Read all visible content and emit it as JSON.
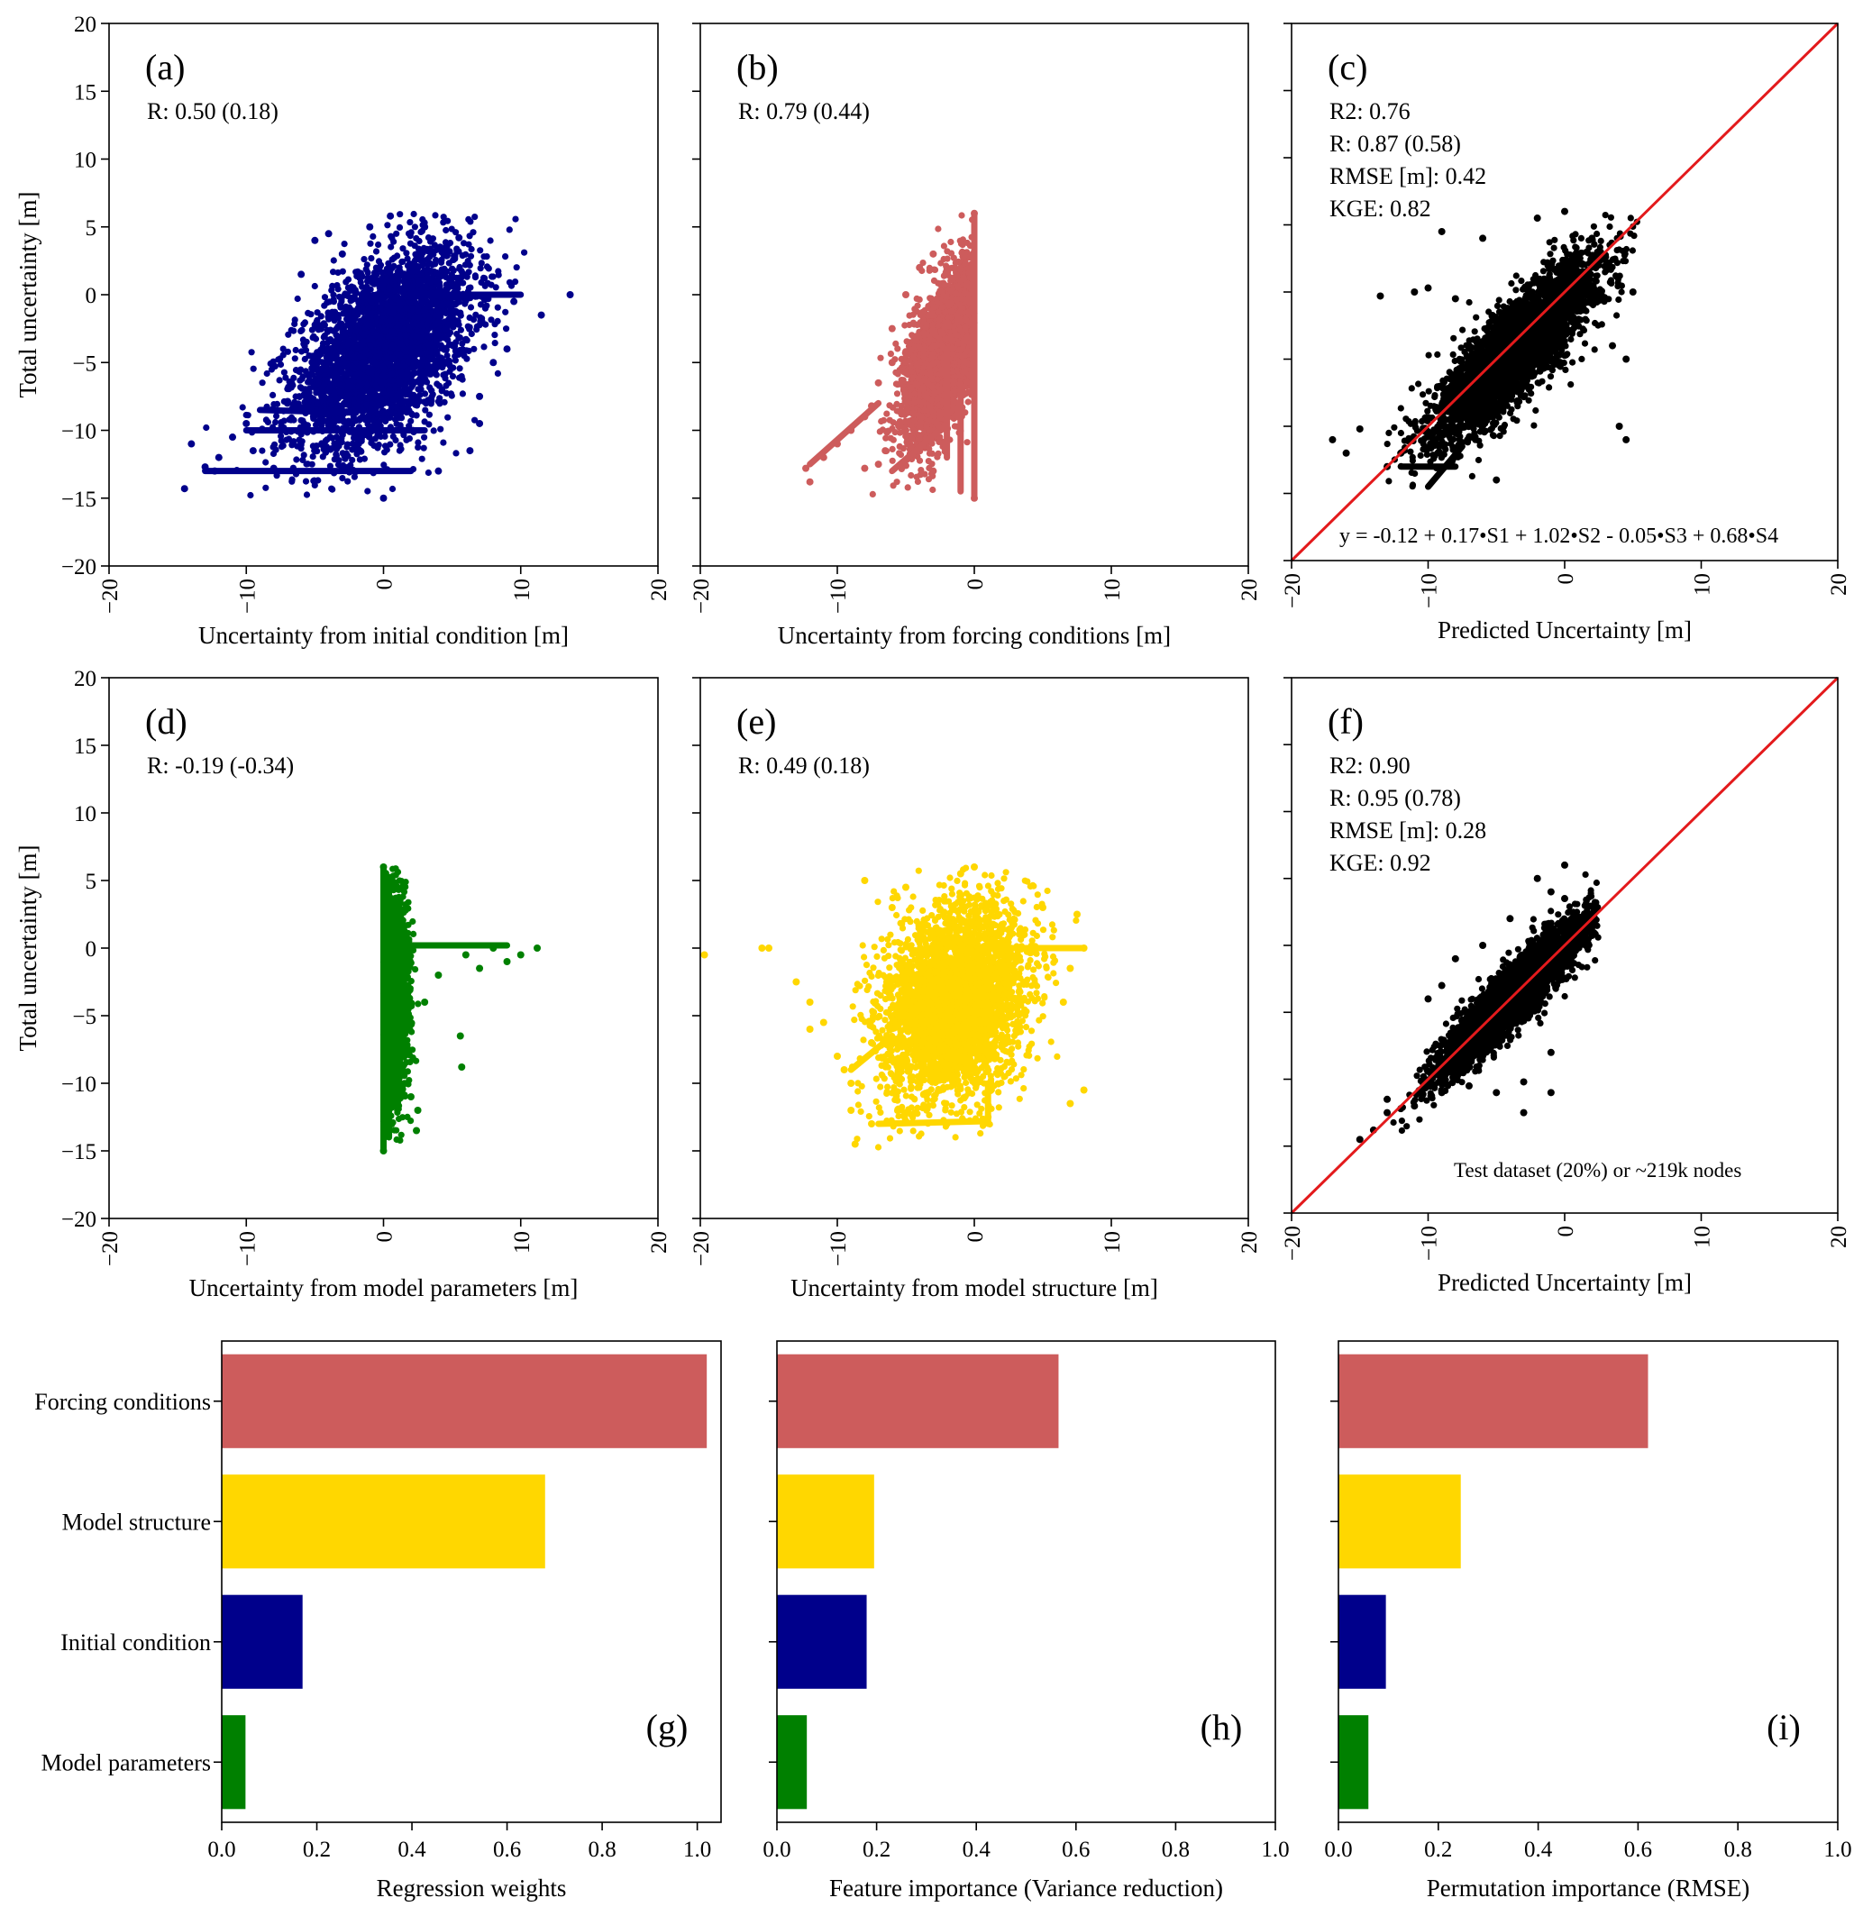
{
  "colors": {
    "initial": "#00008B",
    "forcing": "#CD5C5C",
    "parameters": "#008000",
    "structure": "#FFD700",
    "predicted": "#000000",
    "one_to_one_line": "#E31A1C"
  },
  "chart_data": [
    {
      "id": "a",
      "type": "scatter",
      "panel_label": "(a)",
      "stats": [
        "R: 0.50  (0.18)"
      ],
      "xlabel": "Uncertainty from initial condition [m]",
      "ylabel": "Total uncertainty [m]",
      "xlim": [
        -20,
        20
      ],
      "ylim": [
        -20,
        20
      ],
      "xticks": [
        "−20",
        "−10",
        "0",
        "10",
        "20"
      ],
      "yticks": [
        "−20",
        "−15",
        "−10",
        "−5",
        "0",
        "5",
        "10",
        "15",
        "20"
      ],
      "color_key": "initial",
      "cloud": {
        "cx": 0,
        "cy": -4,
        "sx": 3.2,
        "sy": 3.6,
        "r": 0.5,
        "xmin": -14.5,
        "xmax": 13.6,
        "ymin": -15,
        "ymax": 6
      },
      "points": [
        [
          -14.5,
          -14.3
        ],
        [
          -14,
          -11
        ],
        [
          -12.3,
          -13
        ],
        [
          -12,
          -12
        ],
        [
          -11,
          -10.5
        ],
        [
          -9.5,
          -11.5
        ],
        [
          -7,
          -8
        ],
        [
          -5,
          4
        ],
        [
          -4,
          4.5
        ],
        [
          11.5,
          -1.5
        ],
        [
          13.6,
          0
        ],
        [
          9.5,
          -0.5
        ],
        [
          9,
          -4
        ],
        [
          8,
          -5
        ],
        [
          7,
          -7.5
        ],
        [
          7,
          -9.5
        ],
        [
          5.5,
          4.2
        ],
        [
          3,
          5
        ],
        [
          0.5,
          5.8
        ],
        [
          -1,
          5
        ],
        [
          0,
          -15
        ],
        [
          -8,
          -12.8
        ],
        [
          -3,
          -12.8
        ],
        [
          4,
          -13
        ],
        [
          6.3,
          -11.5
        ],
        [
          -13,
          -12.7
        ],
        [
          -10,
          -9.5
        ],
        [
          -6,
          1.5
        ],
        [
          -3,
          3
        ]
      ],
      "lines": [
        [
          2,
          0,
          10,
          0
        ],
        [
          -10,
          -10,
          3,
          -10
        ],
        [
          -13,
          -13,
          2,
          -13
        ],
        [
          -9,
          -8.5,
          -2,
          -8.7
        ]
      ]
    },
    {
      "id": "b",
      "type": "scatter",
      "panel_label": "(b)",
      "stats": [
        "R: 0.79  (0.44)"
      ],
      "xlabel": "Uncertainty from forcing conditions [m]",
      "ylabel": "",
      "xlim": [
        -20,
        20
      ],
      "ylim": [
        -20,
        20
      ],
      "xticks": [
        "−20",
        "−10",
        "0",
        "10",
        "20"
      ],
      "yticks": [],
      "color_key": "forcing",
      "cloud": {
        "cx": -2,
        "cy": -4,
        "sx": 1.5,
        "sy": 3.2,
        "r": 0.6,
        "xmin": -12.5,
        "xmax": 0,
        "ymin": -15,
        "ymax": 6
      },
      "points": [
        [
          -12.3,
          -12.8
        ],
        [
          -12,
          -13.8
        ],
        [
          -11,
          -12
        ],
        [
          -10,
          -11
        ],
        [
          -9,
          -10
        ],
        [
          -8,
          -9
        ],
        [
          -7.5,
          -8.2
        ],
        [
          -7,
          -12.5
        ],
        [
          -8,
          -12.8
        ],
        [
          -6.5,
          -11.5
        ],
        [
          -5,
          -10
        ],
        [
          -3,
          -13
        ],
        [
          -6,
          -2.5
        ],
        [
          -5,
          0
        ],
        [
          -4,
          2
        ],
        [
          -3,
          3
        ],
        [
          -2,
          2
        ],
        [
          0,
          6
        ],
        [
          0,
          -15
        ],
        [
          -6,
          -5
        ],
        [
          -7,
          -6.5
        ]
      ],
      "lines": [
        [
          0,
          -15,
          0,
          6
        ],
        [
          -12,
          -12.5,
          -7,
          -8
        ],
        [
          -6,
          -13,
          -2,
          -9.5
        ],
        [
          -2,
          -12,
          -2,
          -4
        ],
        [
          -1,
          -14.5,
          -1,
          -7
        ]
      ]
    },
    {
      "id": "c",
      "type": "scatter",
      "panel_label": "(c)",
      "stats": [
        "R2: 0.76",
        "R: 0.87  (0.58)",
        "RMSE [m]: 0.42",
        "KGE: 0.82"
      ],
      "equation": "y = -0.12 + 0.17•S1 + 1.02•S2 - 0.05•S3 + 0.68•S4",
      "xlabel": "Predicted Uncertainty [m]",
      "ylabel": "",
      "xlim": [
        -20,
        20
      ],
      "ylim": [
        -20,
        20
      ],
      "xticks": [
        "−20",
        "−10",
        "0",
        "10",
        "20"
      ],
      "yticks": [],
      "color_key": "predicted",
      "one_to_one": true,
      "cloud": {
        "cx": -3.5,
        "cy": -4.2,
        "sx": 3,
        "sy": 3.3,
        "r": 0.85,
        "xmin": -17.5,
        "xmax": 5.5,
        "ymin": -15,
        "ymax": 6
      },
      "points": [
        [
          -17,
          -11
        ],
        [
          -16,
          -12
        ],
        [
          -15,
          -10.2
        ],
        [
          -13.5,
          -0.3
        ],
        [
          -11,
          0
        ],
        [
          -10,
          0.3
        ],
        [
          -8,
          -0.5
        ],
        [
          5,
          0
        ],
        [
          4.5,
          -5
        ],
        [
          4,
          -10
        ],
        [
          4.5,
          -11
        ],
        [
          -13,
          -13
        ],
        [
          -12,
          -12
        ],
        [
          -9,
          4.5
        ],
        [
          -6,
          4
        ],
        [
          -2,
          5.5
        ],
        [
          0,
          6
        ],
        [
          2,
          4
        ],
        [
          3.5,
          -4
        ],
        [
          -5,
          -14
        ]
      ],
      "lines": [
        [
          -10,
          -14.5,
          -7.5,
          -11.5
        ],
        [
          -12,
          -13,
          -8,
          -13
        ]
      ]
    },
    {
      "id": "d",
      "type": "scatter",
      "panel_label": "(d)",
      "stats": [
        "R: -0.19  (-0.34)"
      ],
      "xlabel": "Uncertainty from model parameters [m]",
      "ylabel": "Total uncertainty [m]",
      "xlim": [
        -20,
        20
      ],
      "ylim": [
        -20,
        20
      ],
      "xticks": [
        "−20",
        "−10",
        "0",
        "10",
        "20"
      ],
      "yticks": [
        "−20",
        "−15",
        "−10",
        "−5",
        "0",
        "5",
        "10",
        "15",
        "20"
      ],
      "color_key": "parameters",
      "cloud": {
        "cx": 0.5,
        "cy": -3,
        "sx": 0.6,
        "sy": 3.6,
        "r": 0,
        "xmin": 0,
        "xmax": 11.5,
        "ymin": -15,
        "ymax": 6
      },
      "points": [
        [
          11.2,
          0
        ],
        [
          10,
          -0.5
        ],
        [
          9,
          -1
        ],
        [
          8,
          0
        ],
        [
          7,
          -1.5
        ],
        [
          5.6,
          -6.5
        ],
        [
          5.7,
          -8.8
        ],
        [
          2.4,
          -13.5
        ],
        [
          2,
          -11
        ],
        [
          2.5,
          -12
        ],
        [
          0,
          6
        ],
        [
          0,
          -15
        ],
        [
          3,
          -4
        ],
        [
          4,
          -2
        ],
        [
          6,
          -0.5
        ]
      ],
      "lines": [
        [
          0,
          0.2,
          9,
          0.2
        ],
        [
          0,
          -15,
          0,
          6
        ],
        [
          0.4,
          -14,
          0.4,
          5
        ],
        [
          1,
          -12,
          1,
          2
        ]
      ]
    },
    {
      "id": "e",
      "type": "scatter",
      "panel_label": "(e)",
      "stats": [
        "R: 0.49  (0.18)"
      ],
      "xlabel": "Uncertainty from model structure [m]",
      "ylabel": "",
      "xlim": [
        -20,
        20
      ],
      "ylim": [
        -20,
        20
      ],
      "xticks": [
        "−20",
        "−10",
        "0",
        "10",
        "20"
      ],
      "yticks": [],
      "color_key": "structure",
      "cloud": {
        "cx": -1.5,
        "cy": -4,
        "sx": 2.6,
        "sy": 3.6,
        "r": 0.25,
        "xmin": -9,
        "xmax": 8,
        "ymin": -15,
        "ymax": 6
      },
      "points": [
        [
          -19.7,
          -0.5
        ],
        [
          -15.5,
          0
        ],
        [
          -15,
          0
        ],
        [
          -13,
          -2.5
        ],
        [
          -12,
          -4
        ],
        [
          -12,
          -6
        ],
        [
          -11,
          -5.5
        ],
        [
          -9,
          -10
        ],
        [
          -9,
          -12
        ],
        [
          -8.7,
          -14.5
        ],
        [
          -8,
          5
        ],
        [
          -6,
          3
        ],
        [
          -5,
          4.5
        ],
        [
          -1,
          5.5
        ],
        [
          0,
          6
        ],
        [
          5,
          3
        ],
        [
          7.5,
          2.5
        ],
        [
          7,
          -11.5
        ],
        [
          8,
          -10.5
        ],
        [
          6.5,
          -4
        ],
        [
          7,
          -1.5
        ],
        [
          8,
          0
        ],
        [
          -10,
          -8
        ],
        [
          -9.5,
          -9
        ],
        [
          -2,
          -13
        ],
        [
          -7.5,
          -13
        ],
        [
          -5,
          -12.8
        ],
        [
          1,
          -12.5
        ],
        [
          -7.5,
          -7
        ]
      ],
      "lines": [
        [
          -9,
          -9,
          -6,
          -6.5
        ],
        [
          -7,
          -13,
          1,
          -12.8
        ],
        [
          1,
          -13,
          1,
          -10
        ],
        [
          1,
          0,
          8,
          0
        ]
      ]
    },
    {
      "id": "f",
      "type": "scatter",
      "panel_label": "(f)",
      "stats": [
        "R2: 0.90",
        "R: 0.95  (0.78)",
        "RMSE [m]: 0.28",
        "KGE: 0.92"
      ],
      "note": "Test dataset (20%) or ~219k nodes",
      "xlabel": "Predicted Uncertainty [m]",
      "ylabel": "",
      "xlim": [
        -20,
        20
      ],
      "ylim": [
        -20,
        20
      ],
      "xticks": [
        "−20",
        "−10",
        "0",
        "10",
        "20"
      ],
      "yticks": [],
      "color_key": "predicted",
      "one_to_one": true,
      "cloud": {
        "cx": -3.8,
        "cy": -3.8,
        "sx": 2.7,
        "sy": 2.9,
        "r": 0.92,
        "xmin": -15,
        "xmax": 2.5,
        "ymin": -15,
        "ymax": 6
      },
      "points": [
        [
          -15,
          -14.5
        ],
        [
          -14,
          -13.8
        ],
        [
          -13,
          -12.5
        ],
        [
          -12,
          -12.2
        ],
        [
          -11,
          -12
        ],
        [
          -9,
          -11
        ],
        [
          -7,
          -10.5
        ],
        [
          -5,
          -11
        ],
        [
          -3,
          -12.5
        ],
        [
          -1,
          -11
        ],
        [
          -1,
          -8
        ],
        [
          -10,
          -4
        ],
        [
          -9,
          -3
        ],
        [
          -8,
          -1
        ],
        [
          -6,
          0
        ],
        [
          -4,
          2
        ],
        [
          -2,
          5
        ],
        [
          -1,
          4
        ],
        [
          0,
          3.5
        ],
        [
          0,
          6
        ],
        [
          -3,
          -10.2
        ],
        [
          -13,
          -11.5
        ]
      ],
      "lines": []
    },
    {
      "id": "g",
      "type": "bar",
      "orientation": "horizontal",
      "panel_label": "(g)",
      "xlabel": "Regression weights",
      "xlim": [
        0,
        1.05
      ],
      "xticks": [
        "0.0",
        "0.2",
        "0.4",
        "0.6",
        "0.8",
        "1.0"
      ],
      "xtick_values": [
        0,
        0.2,
        0.4,
        0.6,
        0.8,
        1.0
      ],
      "categories": [
        "Forcing conditions",
        "Model structure",
        "Initial condition",
        "Model parameters"
      ],
      "show_category_labels": true,
      "values": [
        1.02,
        0.68,
        0.17,
        0.05
      ],
      "color_keys": [
        "forcing",
        "structure",
        "initial",
        "parameters"
      ]
    },
    {
      "id": "h",
      "type": "bar",
      "orientation": "horizontal",
      "panel_label": "(h)",
      "xlabel": "Feature importance (Variance reduction)",
      "xlim": [
        0,
        1.0
      ],
      "xticks": [
        "0.0",
        "0.2",
        "0.4",
        "0.6",
        "0.8",
        "1.0"
      ],
      "xtick_values": [
        0,
        0.2,
        0.4,
        0.6,
        0.8,
        1.0
      ],
      "categories": [
        "Forcing conditions",
        "Model structure",
        "Initial condition",
        "Model parameters"
      ],
      "show_category_labels": false,
      "values": [
        0.565,
        0.195,
        0.18,
        0.06
      ],
      "color_keys": [
        "forcing",
        "structure",
        "initial",
        "parameters"
      ]
    },
    {
      "id": "i",
      "type": "bar",
      "orientation": "horizontal",
      "panel_label": "(i)",
      "xlabel": "Permutation importance (RMSE)",
      "xlim": [
        0,
        1.0
      ],
      "xticks": [
        "0.0",
        "0.2",
        "0.4",
        "0.6",
        "0.8",
        "1.0"
      ],
      "xtick_values": [
        0,
        0.2,
        0.4,
        0.6,
        0.8,
        1.0
      ],
      "categories": [
        "Forcing conditions",
        "Model structure",
        "Initial condition",
        "Model parameters"
      ],
      "show_category_labels": false,
      "values": [
        0.62,
        0.245,
        0.095,
        0.06
      ],
      "color_keys": [
        "forcing",
        "structure",
        "initial",
        "parameters"
      ]
    }
  ]
}
